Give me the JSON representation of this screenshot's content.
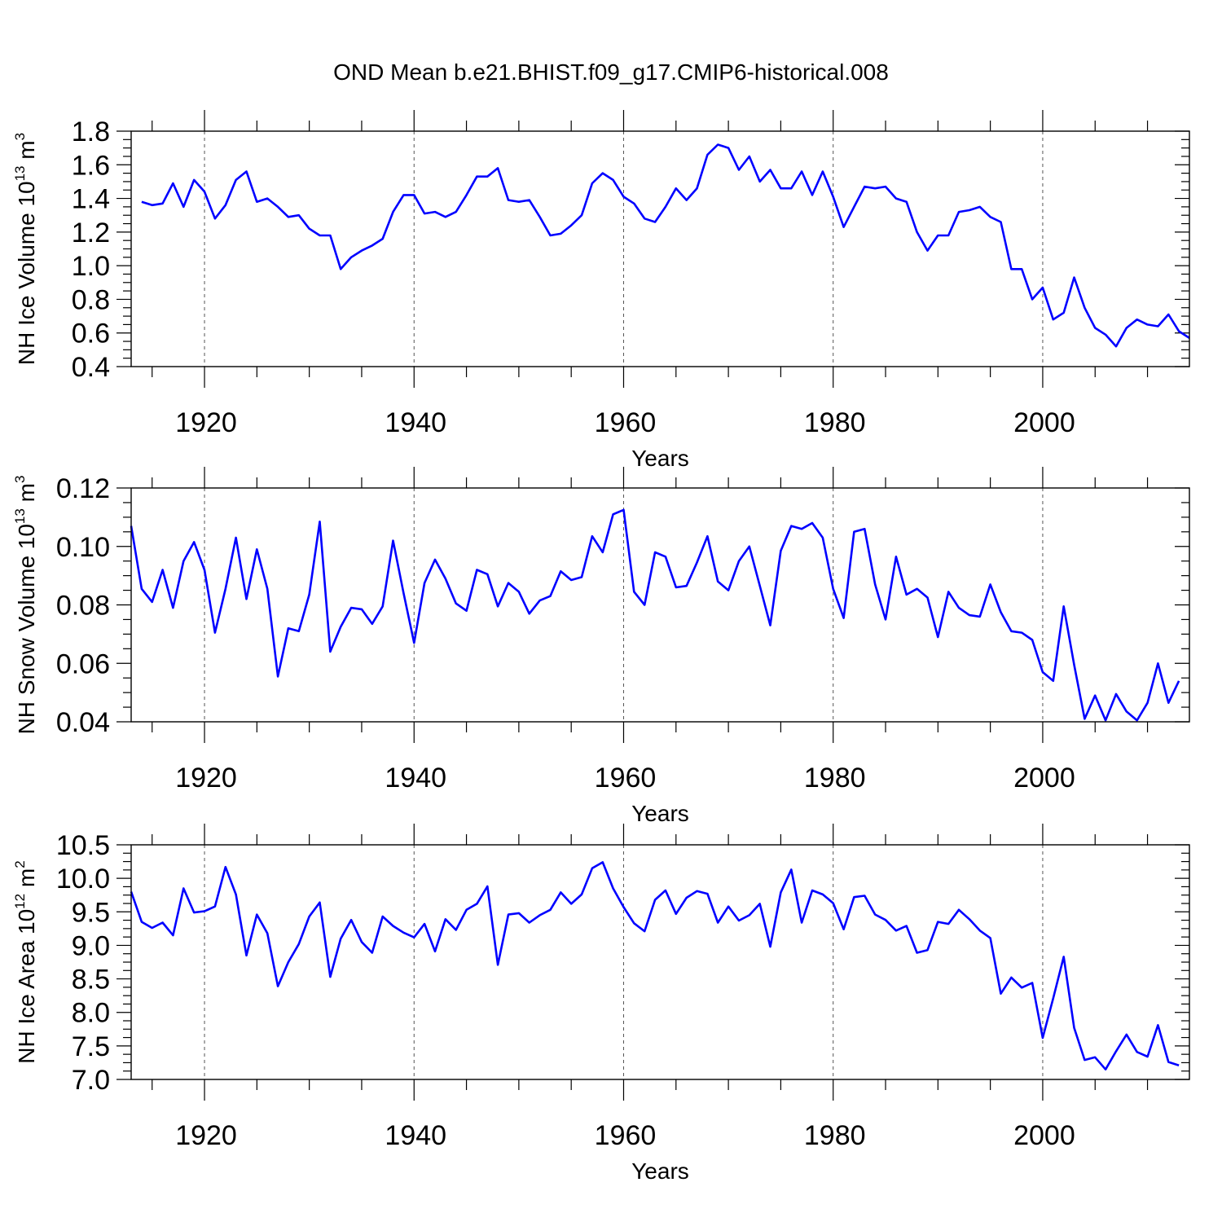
{
  "title": "OND Mean b.e21.BHIST.f09_g17.CMIP6-historical.008",
  "line_color": "#0000ff",
  "chart_data": [
    {
      "type": "line",
      "name": "nh-ice-volume",
      "xlabel": "Years",
      "ylabel": {
        "base": "NH Ice Volume 10",
        "exp": "13",
        "unit": " m",
        "unit_exp": "3"
      },
      "xlim": [
        1913,
        2014
      ],
      "ylim": [
        0.4,
        1.8
      ],
      "x_ticks": [
        1920,
        1940,
        1960,
        1980,
        2000
      ],
      "x_tick_labels": [
        "1920",
        "1940",
        "1960",
        "1980",
        "2000"
      ],
      "y_ticks": [
        0.4,
        0.6,
        0.8,
        1.0,
        1.2,
        1.4,
        1.6,
        1.8
      ],
      "y_tick_labels": [
        "0.4",
        "0.6",
        "0.8",
        "1.0",
        "1.2",
        "1.4",
        "1.6",
        "1.8"
      ],
      "y_minor_step": 0.05,
      "x_start": 1914,
      "values": [
        1.38,
        1.36,
        1.37,
        1.49,
        1.35,
        1.51,
        1.44,
        1.28,
        1.36,
        1.51,
        1.56,
        1.38,
        1.4,
        1.35,
        1.29,
        1.3,
        1.22,
        1.18,
        1.18,
        0.98,
        1.05,
        1.09,
        1.12,
        1.16,
        1.32,
        1.42,
        1.42,
        1.31,
        1.32,
        1.29,
        1.32,
        1.42,
        1.53,
        1.53,
        1.58,
        1.39,
        1.38,
        1.39,
        1.29,
        1.18,
        1.19,
        1.24,
        1.3,
        1.49,
        1.55,
        1.51,
        1.41,
        1.37,
        1.28,
        1.26,
        1.35,
        1.46,
        1.39,
        1.46,
        1.66,
        1.72,
        1.7,
        1.57,
        1.65,
        1.5,
        1.57,
        1.46,
        1.46,
        1.56,
        1.42,
        1.56,
        1.41,
        1.23,
        1.35,
        1.47,
        1.46,
        1.47,
        1.4,
        1.38,
        1.2,
        1.09,
        1.18,
        1.18,
        1.32,
        1.33,
        1.35,
        1.29,
        1.26,
        0.98,
        0.98,
        0.8,
        0.87,
        0.68,
        0.72,
        0.93,
        0.75,
        0.63,
        0.59,
        0.52,
        0.63,
        0.68,
        0.65,
        0.64,
        0.71,
        0.61,
        0.57
      ]
    },
    {
      "type": "line",
      "name": "nh-snow-volume",
      "xlabel": "Years",
      "ylabel": {
        "base": "NH Snow Volume 10",
        "exp": "13",
        "unit": " m",
        "unit_exp": "3"
      },
      "xlim": [
        1913,
        2014
      ],
      "ylim": [
        0.04,
        0.12
      ],
      "x_ticks": [
        1920,
        1940,
        1960,
        1980,
        2000
      ],
      "x_tick_labels": [
        "1920",
        "1940",
        "1960",
        "1980",
        "2000"
      ],
      "y_ticks": [
        0.04,
        0.06,
        0.08,
        0.1,
        0.12
      ],
      "y_tick_labels": [
        "0.04",
        "0.06",
        "0.08",
        "0.10",
        "0.12"
      ],
      "y_minor_step": 0.005,
      "x_start": 1913,
      "values": [
        0.107,
        0.0855,
        0.081,
        0.092,
        0.079,
        0.095,
        0.1015,
        0.092,
        0.0705,
        0.0855,
        0.103,
        0.082,
        0.099,
        0.0855,
        0.0555,
        0.072,
        0.071,
        0.0835,
        0.1085,
        0.064,
        0.0725,
        0.079,
        0.0785,
        0.0735,
        0.0795,
        0.102,
        0.084,
        0.067,
        0.0875,
        0.0955,
        0.089,
        0.0805,
        0.078,
        0.092,
        0.0905,
        0.0795,
        0.0875,
        0.0845,
        0.077,
        0.0815,
        0.083,
        0.0915,
        0.0885,
        0.0895,
        0.1035,
        0.098,
        0.111,
        0.1125,
        0.0845,
        0.08,
        0.098,
        0.0965,
        0.086,
        0.0865,
        0.0945,
        0.1035,
        0.088,
        0.085,
        0.095,
        0.1,
        0.0865,
        0.073,
        0.0985,
        0.107,
        0.106,
        0.108,
        0.103,
        0.0855,
        0.0755,
        0.105,
        0.106,
        0.087,
        0.075,
        0.0965,
        0.0835,
        0.0855,
        0.0825,
        0.069,
        0.0845,
        0.079,
        0.0765,
        0.076,
        0.087,
        0.0775,
        0.071,
        0.0705,
        0.068,
        0.057,
        0.054,
        0.0795,
        0.0595,
        0.041,
        0.049,
        0.0405,
        0.0495,
        0.0435,
        0.0405,
        0.0465,
        0.06,
        0.0465,
        0.054
      ]
    },
    {
      "type": "line",
      "name": "nh-ice-area",
      "xlabel": "Years",
      "ylabel": {
        "base": "NH Ice Area 10",
        "exp": "12",
        "unit": " m",
        "unit_exp": "2"
      },
      "xlim": [
        1913,
        2014
      ],
      "ylim": [
        7.0,
        10.5
      ],
      "x_ticks": [
        1920,
        1940,
        1960,
        1980,
        2000
      ],
      "x_tick_labels": [
        "1920",
        "1940",
        "1960",
        "1980",
        "2000"
      ],
      "y_ticks": [
        7.0,
        7.5,
        8.0,
        8.5,
        9.0,
        9.5,
        10.0,
        10.5
      ],
      "y_tick_labels": [
        "7.0",
        "7.5",
        "8.0",
        "8.5",
        "9.0",
        "9.5",
        "10.0",
        "10.5"
      ],
      "y_minor_step": 0.125,
      "x_start": 1913,
      "values": [
        9.8,
        9.35,
        9.26,
        9.34,
        9.15,
        9.85,
        9.49,
        9.51,
        9.58,
        10.17,
        9.76,
        8.85,
        9.46,
        9.18,
        8.39,
        8.75,
        9.02,
        9.43,
        9.64,
        8.53,
        9.1,
        9.38,
        9.05,
        8.89,
        9.43,
        9.29,
        9.19,
        9.12,
        9.32,
        8.91,
        9.39,
        9.23,
        9.53,
        9.62,
        9.88,
        8.71,
        9.46,
        9.48,
        9.34,
        9.45,
        9.53,
        9.79,
        9.62,
        9.76,
        10.15,
        10.24,
        9.85,
        9.57,
        9.33,
        9.21,
        9.68,
        9.82,
        9.47,
        9.71,
        9.81,
        9.77,
        9.34,
        9.58,
        9.37,
        9.45,
        9.62,
        8.98,
        9.79,
        10.13,
        9.34,
        9.82,
        9.76,
        9.63,
        9.24,
        9.72,
        9.74,
        9.46,
        9.38,
        9.22,
        9.29,
        8.89,
        8.93,
        9.35,
        9.32,
        9.53,
        9.39,
        9.22,
        9.11,
        8.28,
        8.52,
        8.37,
        8.44,
        7.62,
        8.21,
        8.83,
        7.77,
        7.29,
        7.33,
        7.15,
        7.42,
        7.67,
        7.41,
        7.34,
        7.81,
        7.26,
        7.21
      ]
    }
  ]
}
